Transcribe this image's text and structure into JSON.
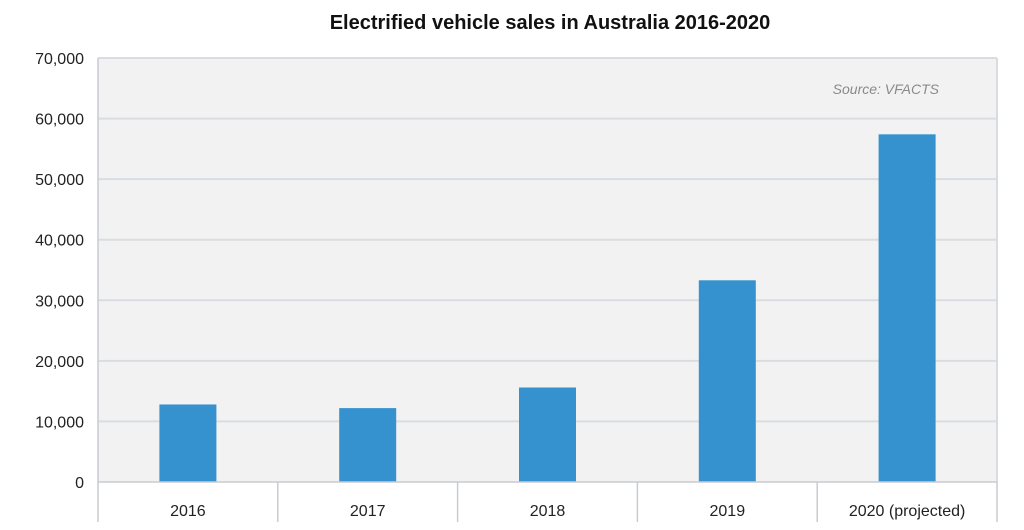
{
  "chart_data": {
    "type": "bar",
    "title": "Electrified vehicle sales in Australia 2016-2020",
    "source": "Source: VFACTS",
    "categories": [
      "2016",
      "2017",
      "2018",
      "2019",
      "2020 (projected)"
    ],
    "values": [
      12800,
      12200,
      15600,
      33300,
      57400
    ],
    "ylim": [
      0,
      70000
    ],
    "yticks": [
      0,
      10000,
      20000,
      30000,
      40000,
      50000,
      60000,
      70000
    ],
    "ytick_labels": [
      "0",
      "10,000",
      "20,000",
      "30,000",
      "40,000",
      "50,000",
      "60,000",
      "70,000"
    ],
    "xlabel": "",
    "ylabel": "",
    "grid": true,
    "bar_color": "#3592cf",
    "plot_background": "#f2f2f2",
    "grid_color": "#d9dde2"
  }
}
